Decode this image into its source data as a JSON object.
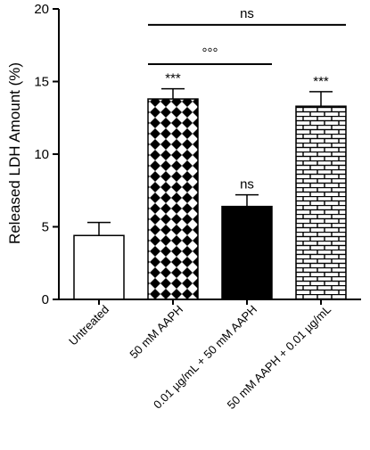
{
  "chart_data": {
    "type": "bar",
    "ylabel": "Released LDH Amount (%)",
    "ylim": [
      0,
      20
    ],
    "yticks": [
      0,
      5,
      10,
      15,
      20
    ],
    "categories": [
      "Untreated",
      "50 mM AAPH",
      "0.01 µg/mL + 50 mM AAPH",
      "50 mM AAPH + 0.01 µg/mL"
    ],
    "values": [
      4.4,
      13.8,
      6.4,
      13.3
    ],
    "errors": [
      0.9,
      0.7,
      0.8,
      1.0
    ],
    "fills": [
      "white",
      "checker",
      "black",
      "brick"
    ],
    "bar_labels": [
      "",
      "***",
      "ns",
      "***"
    ],
    "brackets": [
      {
        "from": 1,
        "to": 3,
        "label": "ns",
        "y": 18.9
      },
      {
        "from": 1,
        "to": 2,
        "label": "°°°",
        "y": 16.2
      }
    ],
    "grid": false,
    "legend": "none"
  }
}
